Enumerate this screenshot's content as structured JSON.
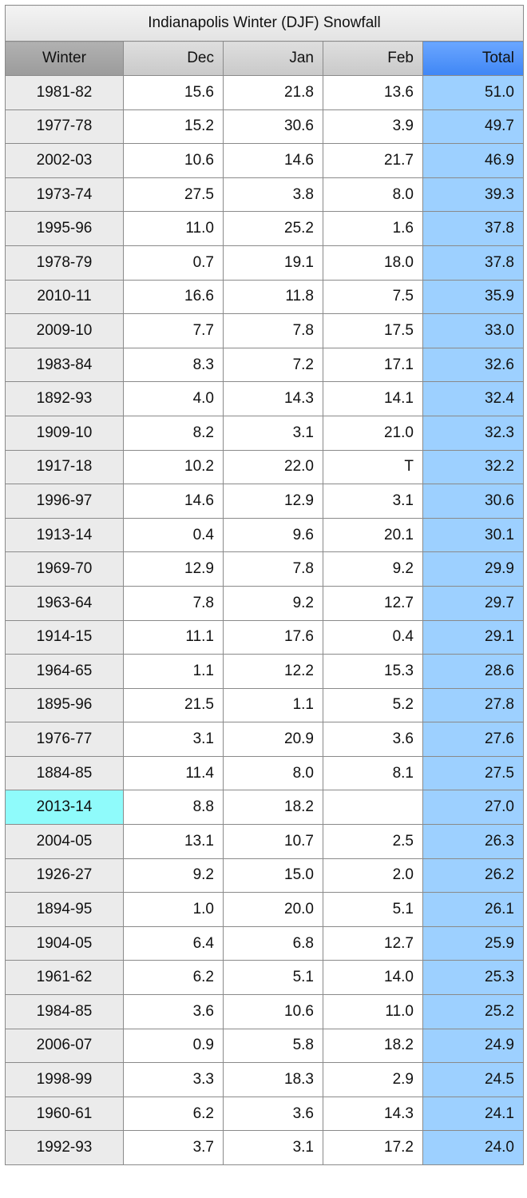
{
  "chart_data": {
    "type": "table",
    "title": "Indianapolis Winter (DJF) Snowfall",
    "columns": [
      "Winter",
      "Dec",
      "Jan",
      "Feb",
      "Total"
    ],
    "highlight_winter": "2013-14",
    "colors": {
      "header": "#d4d4d4",
      "winter_header": "#a6a6a6",
      "total_header": "#4d8ef8",
      "winter_cell": "#ebebeb",
      "highlight_cell": "#8ffbfb",
      "total_cell": "#9dd0ff"
    },
    "rows": [
      [
        "1981-82",
        "15.6",
        "21.8",
        "13.6",
        "51.0"
      ],
      [
        "1977-78",
        "15.2",
        "30.6",
        "3.9",
        "49.7"
      ],
      [
        "2002-03",
        "10.6",
        "14.6",
        "21.7",
        "46.9"
      ],
      [
        "1973-74",
        "27.5",
        "3.8",
        "8.0",
        "39.3"
      ],
      [
        "1995-96",
        "11.0",
        "25.2",
        "1.6",
        "37.8"
      ],
      [
        "1978-79",
        "0.7",
        "19.1",
        "18.0",
        "37.8"
      ],
      [
        "2010-11",
        "16.6",
        "11.8",
        "7.5",
        "35.9"
      ],
      [
        "2009-10",
        "7.7",
        "7.8",
        "17.5",
        "33.0"
      ],
      [
        "1983-84",
        "8.3",
        "7.2",
        "17.1",
        "32.6"
      ],
      [
        "1892-93",
        "4.0",
        "14.3",
        "14.1",
        "32.4"
      ],
      [
        "1909-10",
        "8.2",
        "3.1",
        "21.0",
        "32.3"
      ],
      [
        "1917-18",
        "10.2",
        "22.0",
        "T",
        "32.2"
      ],
      [
        "1996-97",
        "14.6",
        "12.9",
        "3.1",
        "30.6"
      ],
      [
        "1913-14",
        "0.4",
        "9.6",
        "20.1",
        "30.1"
      ],
      [
        "1969-70",
        "12.9",
        "7.8",
        "9.2",
        "29.9"
      ],
      [
        "1963-64",
        "7.8",
        "9.2",
        "12.7",
        "29.7"
      ],
      [
        "1914-15",
        "11.1",
        "17.6",
        "0.4",
        "29.1"
      ],
      [
        "1964-65",
        "1.1",
        "12.2",
        "15.3",
        "28.6"
      ],
      [
        "1895-96",
        "21.5",
        "1.1",
        "5.2",
        "27.8"
      ],
      [
        "1976-77",
        "3.1",
        "20.9",
        "3.6",
        "27.6"
      ],
      [
        "1884-85",
        "11.4",
        "8.0",
        "8.1",
        "27.5"
      ],
      [
        "2013-14",
        "8.8",
        "18.2",
        "",
        "27.0"
      ],
      [
        "2004-05",
        "13.1",
        "10.7",
        "2.5",
        "26.3"
      ],
      [
        "1926-27",
        "9.2",
        "15.0",
        "2.0",
        "26.2"
      ],
      [
        "1894-95",
        "1.0",
        "20.0",
        "5.1",
        "26.1"
      ],
      [
        "1904-05",
        "6.4",
        "6.8",
        "12.7",
        "25.9"
      ],
      [
        "1961-62",
        "6.2",
        "5.1",
        "14.0",
        "25.3"
      ],
      [
        "1984-85",
        "3.6",
        "10.6",
        "11.0",
        "25.2"
      ],
      [
        "2006-07",
        "0.9",
        "5.8",
        "18.2",
        "24.9"
      ],
      [
        "1998-99",
        "3.3",
        "18.3",
        "2.9",
        "24.5"
      ],
      [
        "1960-61",
        "6.2",
        "3.6",
        "14.3",
        "24.1"
      ],
      [
        "1992-93",
        "3.7",
        "3.1",
        "17.2",
        "24.0"
      ]
    ]
  }
}
